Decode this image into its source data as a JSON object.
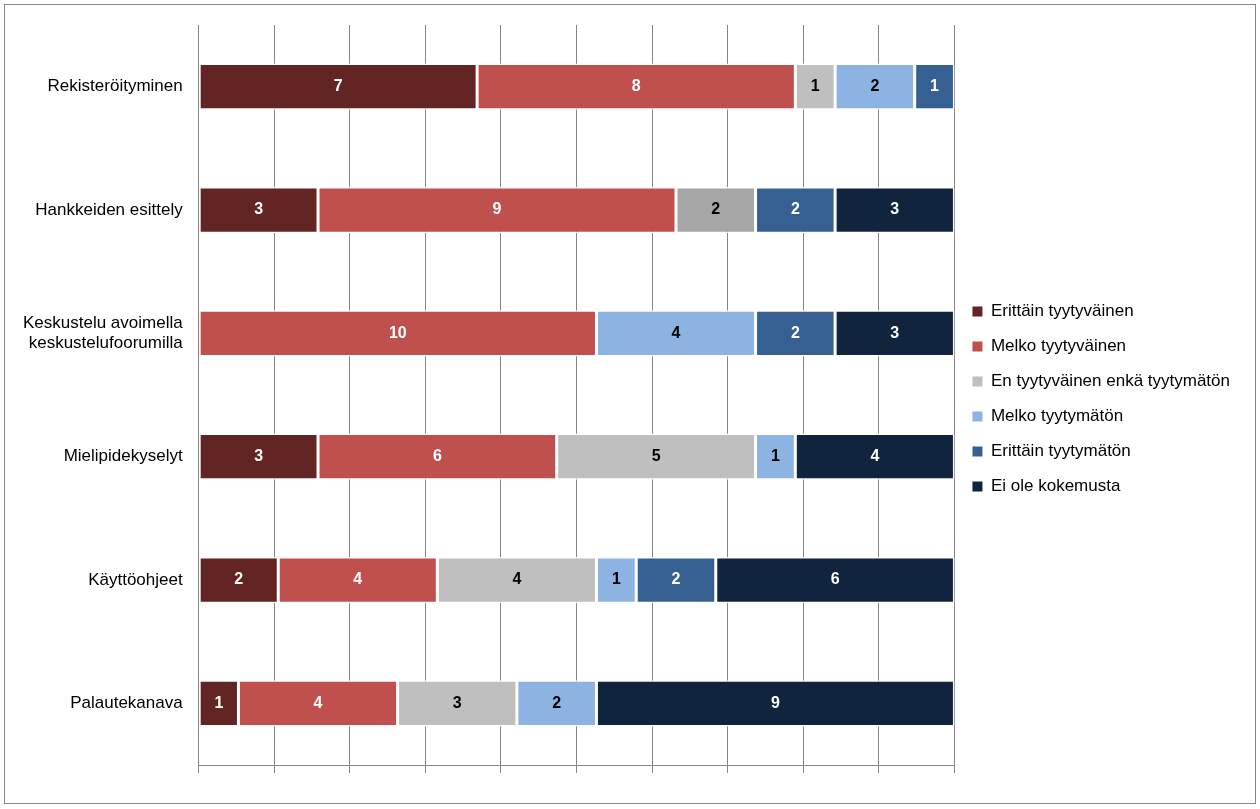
{
  "chart_data": {
    "type": "bar",
    "orientation": "horizontal",
    "stacked": true,
    "data_labels": true,
    "grid": "x",
    "legend": "right",
    "tick_labels": "y",
    "categories": [
      "Rekisteröityminen",
      "Hankkeiden esittely",
      "Keskustelu avoimella keskustelufoorumilla",
      "Mielipidekyselyt",
      "Käyttöohjeet",
      "Palautekanava"
    ],
    "xlim": [
      0,
      19
    ],
    "xticks": [
      {
        "value": 0,
        "label": null
      },
      {
        "value": 1.9,
        "label": null
      },
      {
        "value": 3.8,
        "label": null
      },
      {
        "value": 5.7,
        "label": null
      },
      {
        "value": 7.6,
        "label": null
      },
      {
        "value": 9.5,
        "label": null
      },
      {
        "value": 11.4,
        "label": null
      },
      {
        "value": 13.3,
        "label": null
      },
      {
        "value": 15.2,
        "label": null
      },
      {
        "value": 17.1,
        "label": null
      },
      {
        "value": 19,
        "label": null
      }
    ],
    "series": [
      {
        "name": "Erittäin tyytyväinen",
        "color": "#632523",
        "values": [
          7,
          3,
          null,
          3,
          2,
          1
        ]
      },
      {
        "name": "Melko tyytyväinen",
        "color": "#c0504d",
        "values": [
          8,
          9,
          10,
          6,
          4,
          4
        ]
      },
      {
        "name": "En tyytyväinen enkä tyytymätön",
        "color": "#bfbfbf",
        "colors": [
          "#bfbfbf",
          "#a6a6a6",
          "#bfbfbf",
          "#bfbfbf",
          "#bfbfbf",
          "#bfbfbf"
        ],
        "values": [
          1,
          2,
          null,
          5,
          4,
          3
        ]
      },
      {
        "name": "Melko tyytymätön",
        "color": "#8db3e2",
        "values": [
          2,
          null,
          4,
          1,
          1,
          2
        ]
      },
      {
        "name": "Erittäin tyytymätön",
        "color": "#376092",
        "values": [
          1,
          2,
          2,
          null,
          2,
          null
        ]
      },
      {
        "name": "Ei ole kokemusta",
        "color": "#10243e",
        "values": [
          null,
          3,
          3,
          4,
          6,
          9
        ]
      }
    ]
  }
}
